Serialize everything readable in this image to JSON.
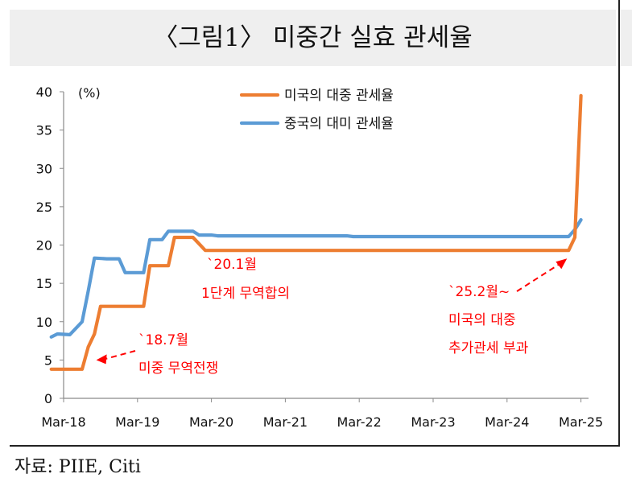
{
  "title": "〈그림1〉 미중간 실효 관세율",
  "source": "자료: PIIE, Citi",
  "chart_data": {
    "type": "line",
    "unit_label": "(%)",
    "x_tick_labels": [
      "Mar-18",
      "Mar-19",
      "Mar-20",
      "Mar-21",
      "Mar-22",
      "Mar-23",
      "Mar-24",
      "Mar-25"
    ],
    "ylim": [
      0,
      40
    ],
    "y_ticks": [
      0,
      5,
      10,
      15,
      20,
      25,
      30,
      35,
      40
    ],
    "grid": false,
    "legend_position": "top",
    "series": [
      {
        "name": "미국의 대중 관세율",
        "color": "#ED7D31",
        "points": [
          [
            "2018-01",
            3.8
          ],
          [
            "2018-06",
            3.8
          ],
          [
            "2018-07",
            6.7
          ],
          [
            "2018-08",
            8.4
          ],
          [
            "2018-09",
            12.0
          ],
          [
            "2019-04",
            12.0
          ],
          [
            "2019-05",
            17.3
          ],
          [
            "2019-08",
            17.3
          ],
          [
            "2019-09",
            21.0
          ],
          [
            "2019-12",
            21.0
          ],
          [
            "2020-02",
            19.3
          ],
          [
            "2025-01",
            19.3
          ],
          [
            "2025-02",
            21.0
          ],
          [
            "2025-03",
            39.5
          ]
        ]
      },
      {
        "name": "중국의 대미 관세율",
        "color": "#5B9BD5",
        "points": [
          [
            "2018-01",
            8.0
          ],
          [
            "2018-02",
            8.4
          ],
          [
            "2018-04",
            8.3
          ],
          [
            "2018-06",
            10.0
          ],
          [
            "2018-07",
            14.0
          ],
          [
            "2018-08",
            18.3
          ],
          [
            "2018-10",
            18.2
          ],
          [
            "2018-12",
            18.2
          ],
          [
            "2019-01",
            16.4
          ],
          [
            "2019-04",
            16.4
          ],
          [
            "2019-05",
            20.7
          ],
          [
            "2019-07",
            20.7
          ],
          [
            "2019-08",
            21.8
          ],
          [
            "2019-12",
            21.8
          ],
          [
            "2020-01",
            21.3
          ],
          [
            "2020-03",
            21.3
          ],
          [
            "2020-04",
            21.2
          ],
          [
            "2022-01",
            21.2
          ],
          [
            "2022-02",
            21.1
          ],
          [
            "2025-01",
            21.1
          ],
          [
            "2025-02",
            22.0
          ],
          [
            "2025-03",
            23.3
          ]
        ]
      }
    ],
    "annotations": [
      {
        "line1": "`18.7월",
        "line2": "미중 무역전쟁",
        "arrow_to": [
          "2018-07",
          5.0
        ]
      },
      {
        "line1": "`20.1월",
        "line2": "1단계 무역합의"
      },
      {
        "line1": "`25.2월~",
        "line2": "미국의 대중",
        "line3": "추가관세 부과",
        "arrow_to": [
          "2025-01",
          19.5
        ]
      }
    ]
  }
}
